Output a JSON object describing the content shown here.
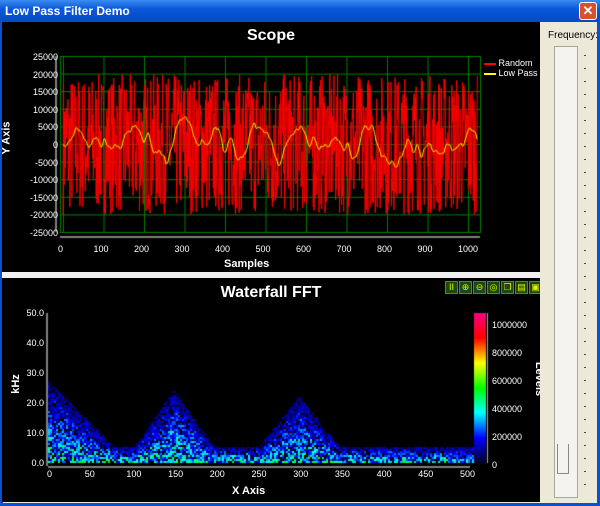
{
  "window": {
    "title": "Low Pass Filter Demo",
    "close_icon": "close-icon"
  },
  "scope": {
    "title": "Scope",
    "xlabel": "Samples",
    "ylabel": "Y Axis",
    "yticks": [
      "25000",
      "20000",
      "15000",
      "10000",
      "5000",
      "0",
      "-5000",
      "-10000",
      "-15000",
      "-20000",
      "-25000"
    ],
    "xticks": [
      "0",
      "100",
      "200",
      "300",
      "400",
      "500",
      "600",
      "700",
      "800",
      "900",
      "1000"
    ],
    "legend": [
      {
        "name": "Random",
        "color": "#ff0000"
      },
      {
        "name": "Low Pass",
        "color": "#ffff00"
      }
    ],
    "grid_color": "#008000"
  },
  "waterfall": {
    "title": "Waterfall FFT",
    "xlabel": "X Axis",
    "ylabel": "kHz",
    "yticks": [
      "50.0",
      "40.0",
      "30.0",
      "20.0",
      "10.0",
      "0.0"
    ],
    "xticks": [
      "0",
      "50",
      "100",
      "150",
      "200",
      "250",
      "300",
      "350",
      "400",
      "450",
      "500"
    ],
    "colorbar": {
      "label": "Levels",
      "ticks": [
        "1000000",
        "800000",
        "600000",
        "400000",
        "200000",
        "0"
      ]
    },
    "toolbar": [
      "pause-icon",
      "zoom-in-icon",
      "zoom-out-icon",
      "zoom-reset-icon",
      "copy-icon",
      "print-icon",
      "save-icon"
    ]
  },
  "slider": {
    "label": "Frequency:",
    "value_fraction": 0.06
  }
}
